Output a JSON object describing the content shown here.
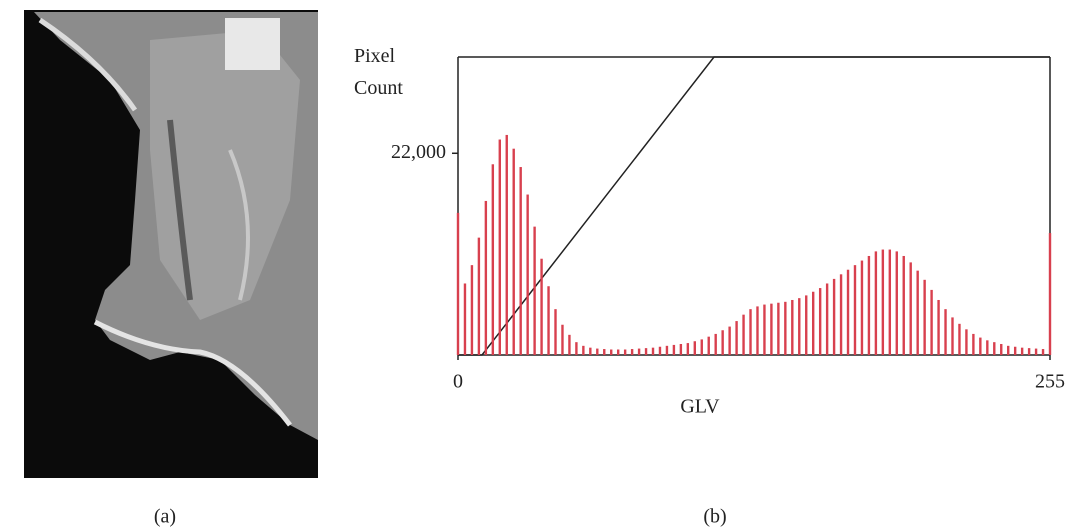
{
  "chart_data": {
    "type": "bar",
    "y_label": "Pixel Count",
    "x_label": "GLV",
    "x": [
      0,
      3,
      6,
      9,
      12,
      15,
      18,
      21,
      24,
      27,
      30,
      33,
      36,
      39,
      42,
      45,
      48,
      51,
      54,
      57,
      60,
      63,
      66,
      69,
      72,
      75,
      78,
      81,
      84,
      87,
      90,
      93,
      96,
      99,
      102,
      105,
      108,
      111,
      114,
      117,
      120,
      123,
      126,
      129,
      132,
      135,
      138,
      141,
      144,
      147,
      150,
      153,
      156,
      159,
      162,
      165,
      168,
      171,
      174,
      177,
      180,
      183,
      186,
      189,
      192,
      195,
      198,
      201,
      204,
      207,
      210,
      213,
      216,
      219,
      222,
      225,
      228,
      231,
      234,
      237,
      240,
      243,
      246,
      249,
      252,
      255
    ],
    "values": [
      15500,
      7800,
      9800,
      12800,
      16800,
      20800,
      23500,
      24000,
      22500,
      20500,
      17500,
      14000,
      10500,
      7500,
      5000,
      3300,
      2200,
      1400,
      1000,
      800,
      700,
      650,
      600,
      600,
      600,
      650,
      700,
      750,
      800,
      900,
      1000,
      1100,
      1200,
      1300,
      1500,
      1700,
      2000,
      2300,
      2700,
      3100,
      3700,
      4400,
      5000,
      5300,
      5500,
      5600,
      5700,
      5800,
      6000,
      6200,
      6500,
      6900,
      7300,
      7800,
      8300,
      8800,
      9300,
      9800,
      10300,
      10800,
      11300,
      11500,
      11500,
      11300,
      10800,
      10100,
      9200,
      8200,
      7100,
      6000,
      5000,
      4100,
      3400,
      2800,
      2300,
      1900,
      1600,
      1400,
      1200,
      1000,
      900,
      800,
      750,
      700,
      650,
      13300
    ],
    "color": "#d8404e",
    "xlim": [
      0,
      255
    ],
    "xticks": [
      0,
      255
    ],
    "ylim": [
      0,
      32500
    ],
    "yticks": [
      {
        "value": 22000,
        "label": "22,000"
      }
    ]
  },
  "figure": {
    "captions": [
      "(a)",
      "(b)"
    ]
  }
}
